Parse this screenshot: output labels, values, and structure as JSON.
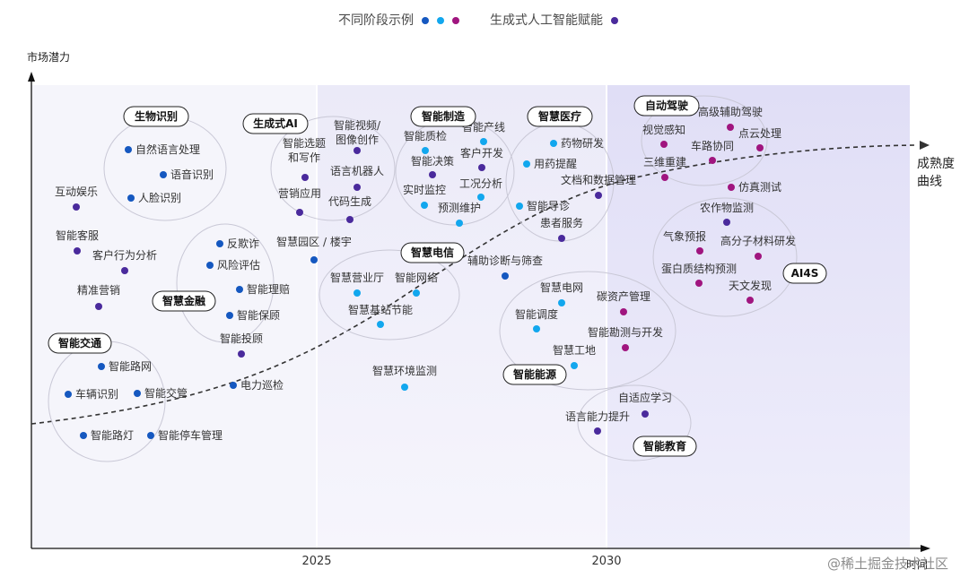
{
  "legend": {
    "stage_label": "不同阶段示例",
    "stage_colors": [
      "#1558c0",
      "#12a7ee",
      "#a0157f"
    ],
    "genai_label": "生成式人工智能赋能",
    "genai_color": "#4a2a9c"
  },
  "chart_data": {
    "type": "scatter",
    "title": "",
    "ylabel": "市场潜力",
    "xlabel": "时间",
    "x_ticks": [
      "2025",
      "2030"
    ],
    "curve_label": "成熟度曲线",
    "watermark": "@稀土掘金技术社区",
    "colors": {
      "early": "#1558c0",
      "mid": "#12a7ee",
      "late": "#a0157f",
      "genai": "#4a2a9c"
    },
    "groups": [
      {
        "name": "生物识别",
        "items": [
          {
            "label": "自然语言处理",
            "stage": "early"
          },
          {
            "label": "语音识别",
            "stage": "early"
          },
          {
            "label": "人脸识别",
            "stage": "early"
          }
        ]
      },
      {
        "name": "生成式AI",
        "items": [
          {
            "label": "智能视频/\n图像创作",
            "stage": "genai"
          },
          {
            "label": "智能选题\n和写作",
            "stage": "genai"
          },
          {
            "label": "语言机器人",
            "stage": "genai"
          },
          {
            "label": "营销应用",
            "stage": "genai"
          },
          {
            "label": "代码生成",
            "stage": "genai"
          }
        ]
      },
      {
        "name": "智能制造",
        "items": [
          {
            "label": "智能产线",
            "stage": "mid"
          },
          {
            "label": "智能质检",
            "stage": "mid"
          },
          {
            "label": "客户开发",
            "stage": "genai"
          },
          {
            "label": "智能决策",
            "stage": "genai"
          },
          {
            "label": "工况分析",
            "stage": "mid"
          },
          {
            "label": "实时监控",
            "stage": "mid"
          },
          {
            "label": "预测维护",
            "stage": "mid"
          }
        ]
      },
      {
        "name": "智慧医疗",
        "items": [
          {
            "label": "药物研发",
            "stage": "mid"
          },
          {
            "label": "用药提醒",
            "stage": "mid"
          },
          {
            "label": "文档和数据管理",
            "stage": "genai"
          },
          {
            "label": "智能导诊",
            "stage": "mid"
          },
          {
            "label": "患者服务",
            "stage": "genai"
          }
        ]
      },
      {
        "name": "自动驾驶",
        "items": [
          {
            "label": "高级辅助驾驶",
            "stage": "late"
          },
          {
            "label": "视觉感知",
            "stage": "late"
          },
          {
            "label": "点云处理",
            "stage": "late"
          },
          {
            "label": "车路协同",
            "stage": "late"
          },
          {
            "label": "三维重建",
            "stage": "late"
          },
          {
            "label": "仿真测试",
            "stage": "late"
          }
        ]
      },
      {
        "name": "智慧电信",
        "items": [
          {
            "label": "智慧营业厅",
            "stage": "mid"
          },
          {
            "label": "智能网络",
            "stage": "mid"
          },
          {
            "label": "智慧基站节能",
            "stage": "mid"
          }
        ]
      },
      {
        "name": "智慧金融",
        "items": [
          {
            "label": "反欺诈",
            "stage": "early"
          },
          {
            "label": "风险评估",
            "stage": "early"
          },
          {
            "label": "智能理赔",
            "stage": "early"
          },
          {
            "label": "智能保顾",
            "stage": "early"
          },
          {
            "label": "智能投顾",
            "stage": "genai"
          }
        ]
      },
      {
        "name": "AI4S",
        "items": [
          {
            "label": "农作物监测",
            "stage": "genai"
          },
          {
            "label": "气象预报",
            "stage": "late"
          },
          {
            "label": "高分子材料研发",
            "stage": "late"
          },
          {
            "label": "蛋白质结构预测",
            "stage": "late"
          },
          {
            "label": "天文发现",
            "stage": "late"
          }
        ]
      },
      {
        "name": "智能交通",
        "items": [
          {
            "label": "智能路网",
            "stage": "early"
          },
          {
            "label": "车辆识别",
            "stage": "early"
          },
          {
            "label": "智能交管",
            "stage": "early"
          },
          {
            "label": "智能路灯",
            "stage": "early"
          },
          {
            "label": "智能停车管理",
            "stage": "early"
          }
        ]
      },
      {
        "name": "智能能源",
        "items": [
          {
            "label": "智慧电网",
            "stage": "mid"
          },
          {
            "label": "碳资产管理",
            "stage": "late"
          },
          {
            "label": "智能调度",
            "stage": "mid"
          },
          {
            "label": "智能勘测与开发",
            "stage": "late"
          },
          {
            "label": "智慧工地",
            "stage": "mid"
          }
        ]
      },
      {
        "name": "智能教育",
        "items": [
          {
            "label": "自适应学习",
            "stage": "genai"
          },
          {
            "label": "语言能力提升",
            "stage": "genai"
          }
        ]
      },
      {
        "name": "",
        "items": [
          {
            "label": "互动娱乐",
            "stage": "genai"
          },
          {
            "label": "智能客服",
            "stage": "genai"
          },
          {
            "label": "客户行为分析",
            "stage": "genai"
          },
          {
            "label": "精准营销",
            "stage": "genai"
          },
          {
            "label": "智慧园区 / 楼宇",
            "stage": "early"
          },
          {
            "label": "辅助诊断与筛查",
            "stage": "early"
          },
          {
            "label": "电力巡检",
            "stage": "early"
          },
          {
            "label": "智慧环境监测",
            "stage": "mid"
          }
        ]
      }
    ]
  }
}
